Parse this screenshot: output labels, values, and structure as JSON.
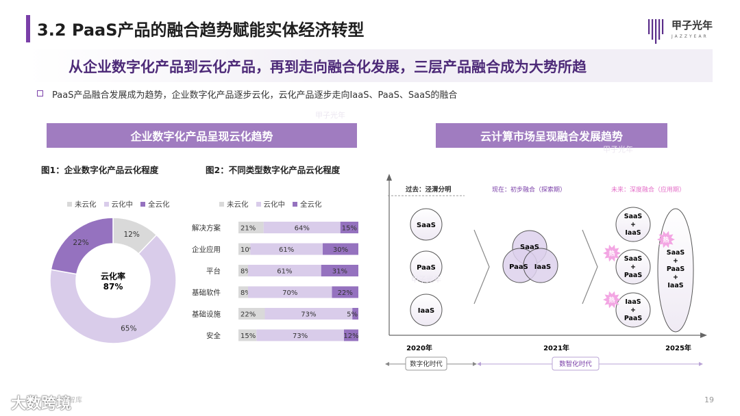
{
  "header": {
    "title": "3.2 PaaS产品的融合趋势赋能实体经济转型",
    "logo_name": "甲子光年",
    "logo_sub": "JAZZYEAR"
  },
  "headline": "从企业数字化产品到云化产品，再到走向融合化发展，三层产品融合成为大势所趋",
  "bullet_text": "PaaS产品融合发展成为趋势，企业数字化产品逐步云化，云化产品逐步走向IaaS、PaaS、SaaS的融合",
  "sections": {
    "left": "企业数字化产品呈现云化趋势",
    "right": "云计算市场呈现融合发展趋势"
  },
  "colors": {
    "none": "#d9d9d9",
    "partial": "#d9ccea",
    "full": "#9572bf",
    "accent": "#7a3fa8",
    "hot": "#f3a6e3"
  },
  "legend": {
    "none": "未云化",
    "partial": "云化中",
    "full": "全云化"
  },
  "chart_data": [
    {
      "type": "pie",
      "title": "图1：企业数字化产品云化程度",
      "center_label": "云化率",
      "center_value": "87%",
      "slices": [
        {
          "name": "未云化",
          "value": 12,
          "label": "12%"
        },
        {
          "name": "云化中",
          "value": 65,
          "label": "65%"
        },
        {
          "name": "全云化",
          "value": 22,
          "label": "22%"
        }
      ]
    },
    {
      "type": "bar",
      "orientation": "horizontal",
      "stacked": true,
      "title": "图2：不同类型数字化产品云化程度",
      "categories": [
        "解决方案",
        "企业应用",
        "平台",
        "基础软件",
        "基础设施",
        "安全"
      ],
      "series": [
        {
          "name": "未云化",
          "values": [
            21,
            10,
            8,
            8,
            22,
            15
          ],
          "labels": [
            "21%",
            "10%",
            "8%",
            "8%",
            "22%",
            "15%"
          ]
        },
        {
          "name": "云化中",
          "values": [
            64,
            61,
            61,
            70,
            73,
            73
          ],
          "labels": [
            "64%",
            "61%",
            "61%",
            "70%",
            "73%",
            "73%"
          ]
        },
        {
          "name": "全云化",
          "values": [
            15,
            30,
            31,
            22,
            5,
            12
          ],
          "labels": [
            "15%",
            "30%",
            "31%",
            "22%",
            "5%",
            "12%"
          ]
        }
      ]
    }
  ],
  "diagram": {
    "phases": {
      "past": "过去：泾渭分明",
      "now": "现在：初步融合（探索期）",
      "future": "未来：深度融合（应用期）"
    },
    "past_nodes": [
      "SaaS",
      "PaaS",
      "IaaS"
    ],
    "now_nodes": [
      "SaaS",
      "PaaS",
      "IaaS"
    ],
    "future_pairs": [
      [
        "SaaS",
        "+",
        "IaaS"
      ],
      [
        "SaaS",
        "+",
        "PaaS"
      ],
      [
        "IaaS",
        "+",
        "PaaS"
      ]
    ],
    "future_all": [
      "SaaS",
      "+",
      "PaaS",
      "+",
      "IaaS"
    ],
    "hot_label": "热",
    "years": [
      "2020年",
      "2021年",
      "2025年"
    ],
    "eras": [
      "数字化时代",
      "数智化时代"
    ]
  },
  "footer": {
    "brand": "大数跨境",
    "source": "年智库",
    "page": "19"
  }
}
